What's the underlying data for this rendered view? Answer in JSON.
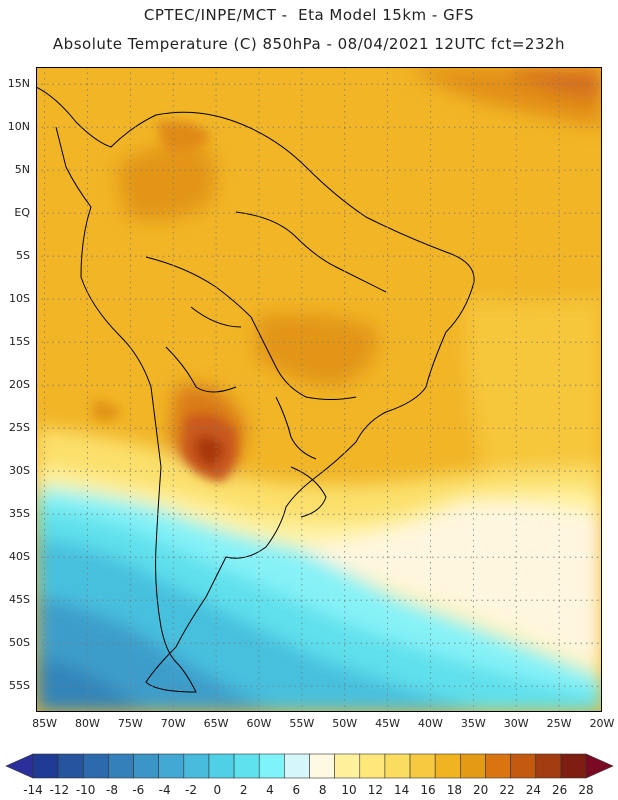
{
  "header": {
    "line1": "CPTEC/INPE/MCT -  Eta Model 15km - GFS",
    "line2": "Absolute Temperature (C) 850hPa - 08/04/2021 12UTC fct=232h"
  },
  "map": {
    "projection": "cylindrical equidistant",
    "lon_range": [
      -86,
      -20
    ],
    "lat_range": [
      -58,
      17
    ],
    "lat_labels": [
      "15N",
      "10N",
      "5N",
      "EQ",
      "5S",
      "10S",
      "15S",
      "20S",
      "25S",
      "30S",
      "35S",
      "40S",
      "45S",
      "50S",
      "55S"
    ],
    "lat_values": [
      15,
      10,
      5,
      0,
      -5,
      -10,
      -15,
      -20,
      -25,
      -30,
      -35,
      -40,
      -45,
      -50,
      -55
    ],
    "lon_labels": [
      "85W",
      "80W",
      "75W",
      "70W",
      "65W",
      "60W",
      "55W",
      "50W",
      "45W",
      "40W",
      "35W",
      "30W",
      "25W",
      "20W"
    ],
    "lon_values": [
      -85,
      -80,
      -75,
      -70,
      -65,
      -60,
      -55,
      -50,
      -45,
      -40,
      -35,
      -30,
      -25,
      -20
    ],
    "field": "850 hPa absolute temperature",
    "ocean_color": "#000000"
  },
  "colorbar": {
    "labels": [
      "-14",
      "-12",
      "-10",
      "-8",
      "-6",
      "-4",
      "-2",
      "0",
      "2",
      "4",
      "6",
      "8",
      "10",
      "12",
      "14",
      "16",
      "18",
      "20",
      "22",
      "24",
      "26",
      "28"
    ],
    "under_color": "#2a2f9c",
    "over_color": "#7a0a23",
    "colors": [
      "#1f3a93",
      "#27549e",
      "#2d6aad",
      "#3480bb",
      "#3c95c7",
      "#41a9d4",
      "#47bcdd",
      "#4fd0e6",
      "#5ee2ee",
      "#7ff4f8",
      "#d5f6fb",
      "#fff8e2",
      "#fff29d",
      "#ffe879",
      "#fadc5e",
      "#f6c940",
      "#f0b423",
      "#e49a14",
      "#d87510",
      "#c45a10",
      "#a33c10",
      "#7e1d12"
    ]
  }
}
